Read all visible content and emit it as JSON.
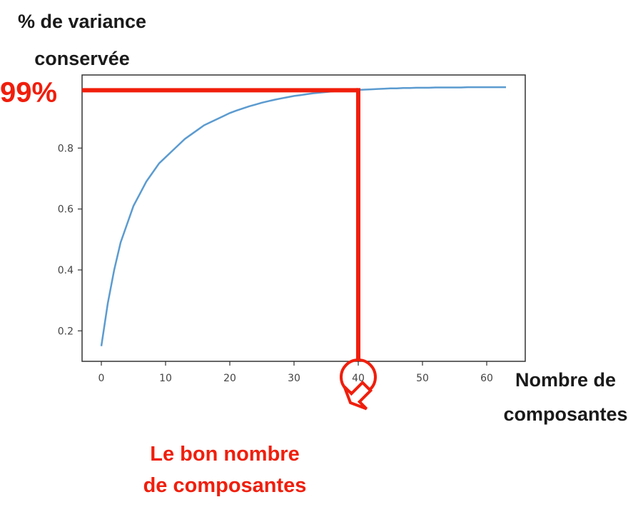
{
  "page": {
    "ylabel_lines": [
      "% de variance",
      "conservée"
    ],
    "xlabel_lines": [
      "Nombre de",
      "composantes"
    ],
    "highlight_label": "99%",
    "annotation_lines": [
      "Le bon nombre",
      "de composantes"
    ],
    "colors": {
      "line": "#5b9bd0",
      "highlight": "#f01e0c",
      "axes": "#333333",
      "ticks": "#444444"
    }
  },
  "chart_data": {
    "type": "line",
    "title": "",
    "xlabel": "Nombre de composantes",
    "ylabel": "% de variance conservée",
    "xlim": [
      -3,
      66
    ],
    "ylim": [
      0.1,
      1.04
    ],
    "x_ticks": [
      0,
      10,
      20,
      30,
      40,
      50,
      60
    ],
    "y_ticks": [
      0.2,
      0.4,
      0.6,
      0.8
    ],
    "grid": false,
    "series": [
      {
        "x": [
          0,
          1,
          2,
          3,
          4,
          5,
          6,
          7,
          8,
          9,
          10,
          11,
          12,
          13,
          14,
          15,
          16,
          17,
          18,
          19,
          20,
          21,
          22,
          23,
          24,
          25,
          26,
          27,
          28,
          29,
          30,
          31,
          32,
          33,
          34,
          35,
          36,
          37,
          38,
          39,
          40,
          41,
          42,
          43,
          44,
          45,
          46,
          47,
          48,
          49,
          50,
          51,
          52,
          53,
          54,
          55,
          56,
          57,
          58,
          59,
          60,
          61,
          62,
          63
        ],
        "values": [
          0.15,
          0.29,
          0.4,
          0.49,
          0.55,
          0.61,
          0.65,
          0.69,
          0.72,
          0.75,
          0.77,
          0.79,
          0.81,
          0.83,
          0.845,
          0.86,
          0.875,
          0.885,
          0.895,
          0.905,
          0.915,
          0.923,
          0.93,
          0.937,
          0.943,
          0.949,
          0.954,
          0.959,
          0.963,
          0.967,
          0.971,
          0.974,
          0.977,
          0.98,
          0.982,
          0.984,
          0.986,
          0.988,
          0.989,
          0.99,
          0.991,
          0.992,
          0.993,
          0.994,
          0.995,
          0.996,
          0.996,
          0.997,
          0.997,
          0.998,
          0.998,
          0.998,
          0.999,
          0.999,
          0.999,
          0.999,
          0.999,
          1.0,
          1.0,
          1.0,
          1.0,
          1.0,
          1.0,
          1.0
        ]
      }
    ],
    "annotations": [
      {
        "label": "99%",
        "x": 40,
        "y": 0.99
      }
    ]
  }
}
